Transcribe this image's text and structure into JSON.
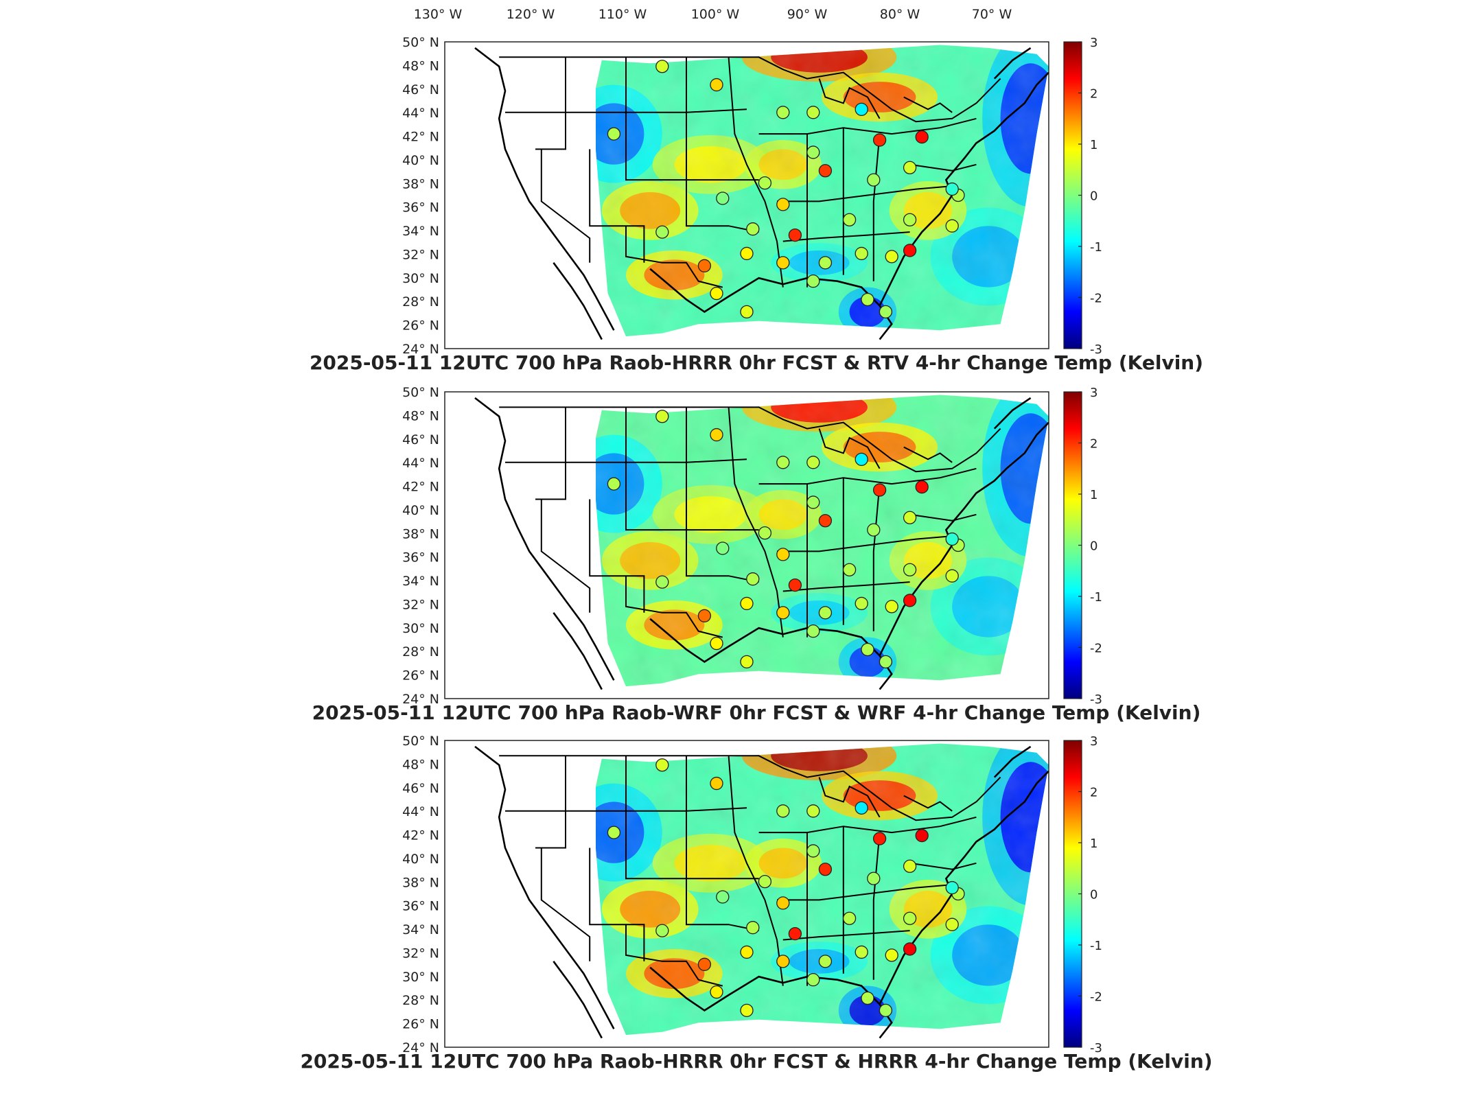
{
  "figure": {
    "longitude_labels": [
      "130° W",
      "120° W",
      "110° W",
      "100° W",
      "90° W",
      "80° W",
      "70° W"
    ],
    "latitude_labels": [
      "50° N",
      "48° N",
      "46° N",
      "44° N",
      "42° N",
      "40° N",
      "38° N",
      "36° N",
      "34° N",
      "32° N",
      "30° N",
      "28° N",
      "26° N",
      "24° N"
    ],
    "colorbar_ticks": [
      "3",
      "2",
      "1",
      "0",
      "-1",
      "-2",
      "-3"
    ],
    "colormap": "jet",
    "panels": [
      {
        "title": "2025-05-11 12UTC 700 hPa Raob-HRRR 0hr FCST & RTV 4-hr Change Temp (Kelvin)"
      },
      {
        "title": "2025-05-11 12UTC 700 hPa Raob-WRF 0hr FCST & WRF 4-hr Change Temp (Kelvin)"
      },
      {
        "title": "2025-05-11 12UTC 700 hPa Raob-HRRR 0hr FCST & HRRR 4-hr Change Temp (Kelvin)"
      }
    ]
  }
}
